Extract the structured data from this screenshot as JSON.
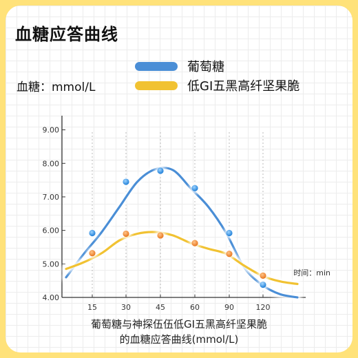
{
  "title": "血糖应答曲线",
  "caption_line1": "葡萄糖与神探伍伍低GI五黑高纤坚果脆",
  "caption_line2": "的血糖应答曲线(mmol/L)",
  "chart_data": {
    "type": "line",
    "ylabel": "血糖：mmol/L",
    "xlabel": "时间：min",
    "y_ticks": [
      "4.00",
      "5.00",
      "6.00",
      "7.00",
      "8.00",
      "9.00"
    ],
    "ylim": [
      4,
      9.3
    ],
    "x_ticks": [
      15,
      30,
      45,
      60,
      90,
      120
    ],
    "series": [
      {
        "name": "葡萄糖",
        "color": "#4a8ed6",
        "points": [
          5.92,
          7.45,
          7.78,
          7.26,
          5.92,
          4.38
        ],
        "curve": [
          4.6,
          5.3,
          5.95,
          6.7,
          7.45,
          7.82,
          7.8,
          7.26,
          6.7,
          5.92,
          4.9,
          4.38,
          4.1,
          4.0
        ]
      },
      {
        "name": "低GI五黑高纤坚果脆",
        "color": "#f1c232",
        "points": [
          5.32,
          5.9,
          5.85,
          5.62,
          5.3,
          4.65
        ],
        "curve": [
          4.85,
          5.05,
          5.32,
          5.7,
          5.9,
          5.95,
          5.85,
          5.62,
          5.45,
          5.3,
          4.95,
          4.65,
          4.48,
          4.4
        ]
      }
    ]
  }
}
